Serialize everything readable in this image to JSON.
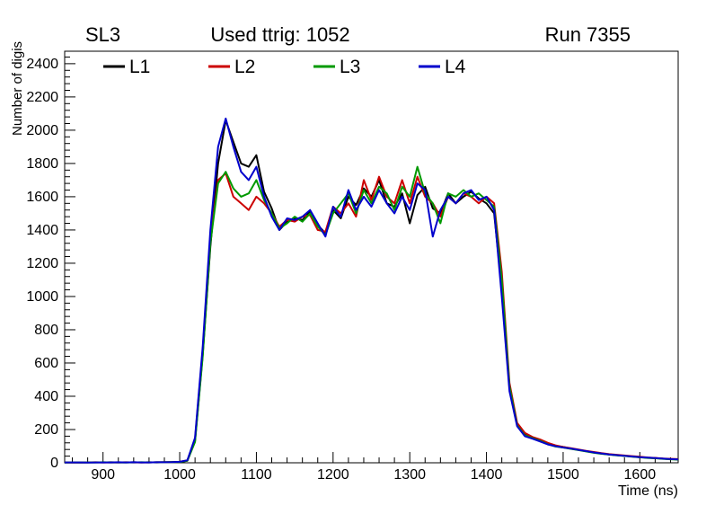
{
  "header": {
    "left": "SL3",
    "center": "Used ttrig: 1052",
    "right": "Run 7355"
  },
  "axes": {
    "xlabel": "Time (ns)",
    "ylabel": "Number of digis",
    "xticks": [
      900,
      1000,
      1100,
      1200,
      1300,
      1400,
      1500,
      1600
    ],
    "yticks": [
      0,
      200,
      400,
      600,
      800,
      1000,
      1200,
      1400,
      1600,
      1800,
      2000,
      2200,
      2400
    ]
  },
  "chart_data": {
    "type": "line",
    "title": "Used ttrig: 1052",
    "subtitle_left": "SL3",
    "subtitle_right": "Run 7355",
    "xlabel": "Time (ns)",
    "ylabel": "Number of digis",
    "xlim": [
      850,
      1650
    ],
    "ylim": [
      0,
      2475
    ],
    "grid": false,
    "legend_position": "top-inside-horizontal",
    "x": [
      850,
      860,
      870,
      880,
      890,
      900,
      910,
      920,
      930,
      940,
      950,
      960,
      970,
      980,
      990,
      1000,
      1010,
      1020,
      1030,
      1040,
      1050,
      1060,
      1070,
      1080,
      1090,
      1100,
      1110,
      1120,
      1130,
      1140,
      1150,
      1160,
      1170,
      1180,
      1190,
      1200,
      1210,
      1220,
      1230,
      1240,
      1250,
      1260,
      1270,
      1280,
      1290,
      1300,
      1310,
      1320,
      1330,
      1340,
      1350,
      1360,
      1370,
      1380,
      1390,
      1400,
      1410,
      1420,
      1430,
      1440,
      1450,
      1460,
      1470,
      1480,
      1490,
      1500,
      1510,
      1520,
      1530,
      1540,
      1550,
      1560,
      1570,
      1580,
      1590,
      1600,
      1610,
      1620,
      1630,
      1640,
      1650
    ],
    "series": [
      {
        "name": "L1",
        "color": "#000000",
        "values": [
          2,
          2,
          1,
          2,
          2,
          2,
          3,
          2,
          2,
          3,
          2,
          3,
          2,
          3,
          4,
          5,
          12,
          130,
          650,
          1300,
          1800,
          2060,
          1930,
          1800,
          1780,
          1850,
          1630,
          1530,
          1400,
          1450,
          1470,
          1460,
          1510,
          1430,
          1380,
          1520,
          1470,
          1600,
          1550,
          1650,
          1600,
          1700,
          1560,
          1540,
          1620,
          1440,
          1610,
          1660,
          1530,
          1500,
          1620,
          1560,
          1600,
          1630,
          1590,
          1560,
          1500,
          1050,
          450,
          230,
          170,
          150,
          135,
          115,
          100,
          95,
          85,
          78,
          70,
          62,
          55,
          50,
          46,
          42,
          38,
          34,
          30,
          28,
          25,
          22,
          20
        ]
      },
      {
        "name": "L2",
        "color": "#cc0000",
        "values": [
          2,
          1,
          2,
          2,
          3,
          2,
          2,
          2,
          3,
          2,
          2,
          2,
          3,
          3,
          4,
          6,
          14,
          140,
          680,
          1350,
          1700,
          1740,
          1600,
          1560,
          1520,
          1600,
          1560,
          1500,
          1420,
          1460,
          1450,
          1480,
          1490,
          1400,
          1390,
          1540,
          1500,
          1560,
          1480,
          1700,
          1580,
          1720,
          1600,
          1560,
          1700,
          1560,
          1720,
          1600,
          1560,
          1480,
          1600,
          1560,
          1620,
          1600,
          1560,
          1600,
          1560,
          1150,
          480,
          240,
          180,
          155,
          140,
          120,
          105,
          95,
          88,
          80,
          72,
          65,
          58,
          52,
          48,
          44,
          40,
          36,
          32,
          29,
          26,
          24,
          22
        ]
      },
      {
        "name": "L3",
        "color": "#009900",
        "values": [
          1,
          2,
          2,
          2,
          2,
          3,
          2,
          2,
          2,
          2,
          3,
          2,
          3,
          3,
          4,
          5,
          13,
          125,
          640,
          1320,
          1680,
          1750,
          1650,
          1600,
          1620,
          1700,
          1580,
          1500,
          1410,
          1440,
          1480,
          1450,
          1500,
          1420,
          1370,
          1500,
          1560,
          1620,
          1500,
          1640,
          1560,
          1660,
          1620,
          1520,
          1660,
          1600,
          1780,
          1620,
          1560,
          1440,
          1620,
          1600,
          1640,
          1600,
          1620,
          1580,
          1540,
          1100,
          460,
          225,
          165,
          148,
          132,
          112,
          98,
          92,
          84,
          76,
          68,
          60,
          54,
          49,
          45,
          41,
          37,
          33,
          29,
          27,
          24,
          21,
          19
        ]
      },
      {
        "name": "L4",
        "color": "#0000cc",
        "values": [
          2,
          2,
          2,
          1,
          2,
          2,
          2,
          3,
          2,
          3,
          2,
          2,
          3,
          3,
          4,
          6,
          15,
          150,
          700,
          1400,
          1900,
          2070,
          1900,
          1750,
          1700,
          1780,
          1600,
          1480,
          1400,
          1470,
          1460,
          1480,
          1520,
          1440,
          1360,
          1540,
          1480,
          1640,
          1520,
          1600,
          1540,
          1640,
          1560,
          1500,
          1600,
          1520,
          1680,
          1640,
          1360,
          1520,
          1600,
          1560,
          1620,
          1640,
          1580,
          1600,
          1520,
          1000,
          430,
          220,
          160,
          145,
          128,
          110,
          100,
          92,
          86,
          78,
          70,
          62,
          56,
          50,
          46,
          42,
          38,
          34,
          31,
          28,
          25,
          22,
          20
        ]
      }
    ]
  }
}
